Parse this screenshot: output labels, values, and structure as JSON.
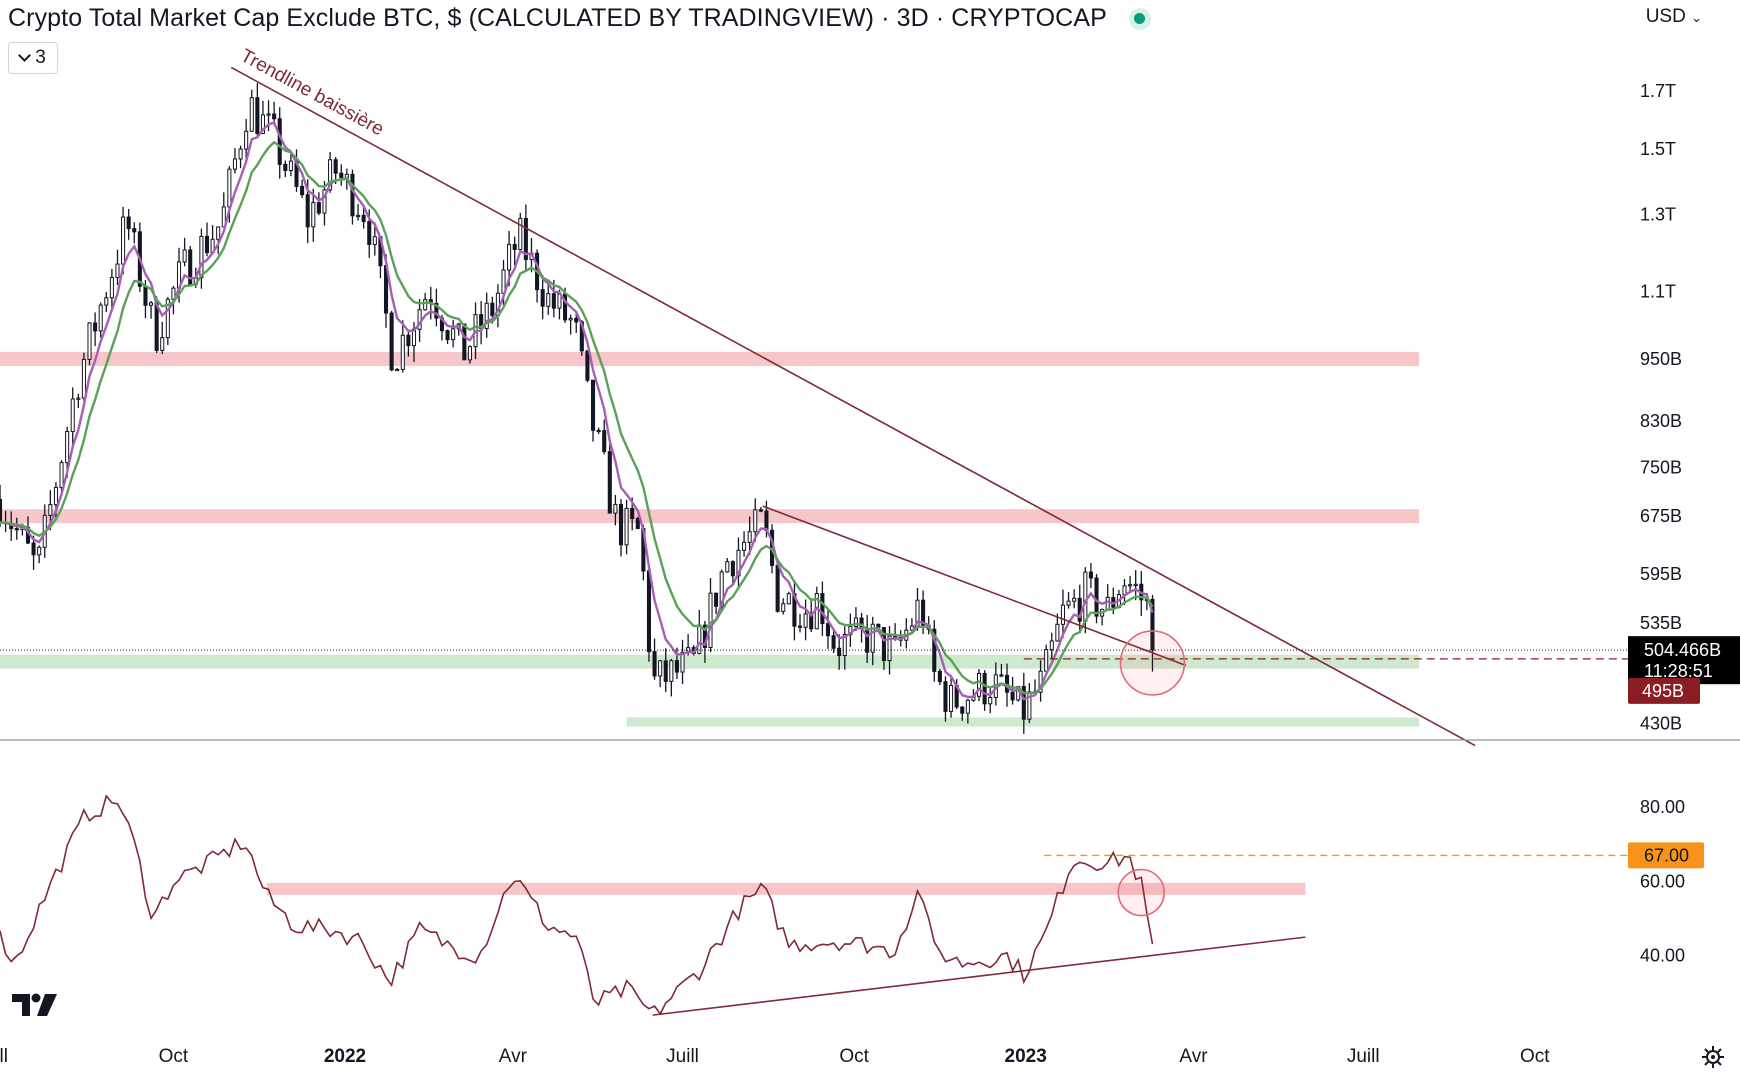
{
  "header": {
    "title": "Crypto Total Market Cap Exclude BTC, $ (CALCULATED BY TRADINGVIEW) · 3D · CRYPTOCAP",
    "currency": "USD",
    "indicator_count": "3"
  },
  "icons": {
    "live": "live-status-dot",
    "collapse": "chevron-down-icon",
    "logo": "tradingview-logo-icon",
    "settings": "gear-icon"
  },
  "colors": {
    "candle": "#131722",
    "ema_fast": "#a55fb5",
    "ema_slow": "#5aa15a",
    "trendline": "#7f2a35",
    "rsi": "#7f2a35",
    "resistance_zone": "#f6c6c9",
    "support_zone": "#cfe9cf",
    "price_label_bg": "#000000",
    "level_label_bg": "#8b1e22",
    "rsi_level_label_bg": "#f7931a"
  },
  "chart_data": [
    {
      "type": "candlestick",
      "title": "Crypto Total Market Cap Exclude BTC, $ (CALCULATED BY TRADINGVIEW) · 3D · CRYPTOCAP",
      "scale": "log",
      "ylim": [
        415,
        1900
      ],
      "y_tick_labels": [
        "1.7T",
        "1.5T",
        "1.3T",
        "1.1T",
        "950B",
        "830B",
        "750B",
        "675B",
        "595B",
        "535B",
        "430B"
      ],
      "y_tick_values": [
        1700,
        1500,
        1300,
        1100,
        950,
        830,
        750,
        675,
        595,
        535,
        430
      ],
      "x_tick_labels": [
        "ill",
        "Oct",
        "2022",
        "Avr",
        "Juill",
        "Oct",
        "2023",
        "Avr",
        "Juill",
        "Oct"
      ],
      "x_tick_dates": [
        "2021-07-01",
        "2021-10-01",
        "2022-01-01",
        "2022-04-01",
        "2022-07-01",
        "2022-10-01",
        "2023-01-01",
        "2023-04-01",
        "2023-07-01",
        "2023-10-01"
      ],
      "x_range": [
        "2021-06-30",
        "2023-11-20"
      ],
      "price_path": [
        [
          "2021-06-30",
          700
        ],
        [
          "2021-07-20",
          600
        ],
        [
          "2021-08-10",
          900
        ],
        [
          "2021-09-06",
          1280
        ],
        [
          "2021-09-21",
          1000
        ],
        [
          "2021-10-06",
          1150
        ],
        [
          "2021-10-27",
          1280
        ],
        [
          "2021-11-10",
          1660
        ],
        [
          "2021-11-24",
          1530
        ],
        [
          "2021-12-12",
          1290
        ],
        [
          "2021-12-27",
          1430
        ],
        [
          "2022-01-13",
          1300
        ],
        [
          "2022-01-27",
          950
        ],
        [
          "2022-02-15",
          1110
        ],
        [
          "2022-03-05",
          960
        ],
        [
          "2022-03-21",
          1060
        ],
        [
          "2022-04-04",
          1240
        ],
        [
          "2022-04-20",
          1080
        ],
        [
          "2022-05-04",
          1020
        ],
        [
          "2022-05-12",
          850
        ],
        [
          "2022-05-27",
          660
        ],
        [
          "2022-06-08",
          650
        ],
        [
          "2022-06-15",
          470
        ],
        [
          "2022-06-27",
          480
        ],
        [
          "2022-07-07",
          490
        ],
        [
          "2022-07-24",
          610
        ],
        [
          "2022-08-13",
          665
        ],
        [
          "2022-08-21",
          570
        ],
        [
          "2022-09-06",
          550
        ],
        [
          "2022-09-12",
          565
        ],
        [
          "2022-09-21",
          510
        ],
        [
          "2022-10-09",
          520
        ],
        [
          "2022-10-23",
          500
        ],
        [
          "2022-11-06",
          560
        ],
        [
          "2022-11-12",
          480
        ],
        [
          "2022-11-22",
          450
        ],
        [
          "2022-12-14",
          470
        ],
        [
          "2022-12-30",
          440
        ],
        [
          "2023-01-10",
          470
        ],
        [
          "2023-01-21",
          545
        ],
        [
          "2023-02-02",
          570
        ],
        [
          "2023-02-14",
          550
        ],
        [
          "2023-02-22",
          590
        ],
        [
          "2023-03-01",
          575
        ],
        [
          "2023-03-07",
          555
        ],
        [
          "2023-03-10",
          504
        ]
      ],
      "series": [
        {
          "name": "",
          "kind": "ema_fast",
          "color": "#a55fb5"
        },
        {
          "name": "",
          "kind": "ema_slow",
          "color": "#5aa15a"
        }
      ],
      "resistance_zones": [
        950,
        675
      ],
      "support_zones": [
        492,
        432
      ],
      "zone_end_date": "2023-07-31",
      "support_zone_2_start_date": "2022-06-01",
      "trendlines": [
        {
          "label": "Trendline baissière",
          "start": [
            "2021-11-01",
            1790
          ],
          "end": [
            "2023-08-30",
            410
          ]
        },
        {
          "label": "",
          "start": [
            "2022-08-13",
            690
          ],
          "end": [
            "2023-03-28",
            488
          ]
        }
      ],
      "highlight_circle": {
        "date": "2023-03-10",
        "value": 495
      },
      "last_price_label": "504.466B",
      "countdown": "11:28:51",
      "last_price_value": 504.466,
      "level_label": "495B",
      "level_value": 495,
      "annotations": [
        "Trendline baissière"
      ]
    },
    {
      "type": "line",
      "name": "",
      "ylim": [
        20,
        90
      ],
      "y_tick_labels": [
        "80.00",
        "60.00",
        "40.00"
      ],
      "y_tick_values": [
        80,
        60,
        40
      ],
      "path": [
        [
          "2021-06-30",
          45
        ],
        [
          "2021-07-08",
          38
        ],
        [
          "2021-07-25",
          57
        ],
        [
          "2021-08-15",
          78
        ],
        [
          "2021-09-01",
          82
        ],
        [
          "2021-09-10",
          70
        ],
        [
          "2021-09-20",
          50
        ],
        [
          "2021-10-01",
          60
        ],
        [
          "2021-10-20",
          65
        ],
        [
          "2021-11-08",
          71
        ],
        [
          "2021-11-20",
          56
        ],
        [
          "2021-12-05",
          48
        ],
        [
          "2021-12-25",
          47
        ],
        [
          "2022-01-10",
          44
        ],
        [
          "2022-01-25",
          33
        ],
        [
          "2022-02-10",
          47
        ],
        [
          "2022-03-01",
          42
        ],
        [
          "2022-03-14",
          40
        ],
        [
          "2022-04-01",
          62
        ],
        [
          "2022-04-20",
          48
        ],
        [
          "2022-05-05",
          45
        ],
        [
          "2022-05-15",
          27
        ],
        [
          "2022-06-01",
          31
        ],
        [
          "2022-06-15",
          24
        ],
        [
          "2022-07-10",
          36
        ],
        [
          "2022-08-01",
          53
        ],
        [
          "2022-08-13",
          58
        ],
        [
          "2022-08-27",
          43
        ],
        [
          "2022-09-21",
          44
        ],
        [
          "2022-10-08",
          43
        ],
        [
          "2022-10-22",
          41
        ],
        [
          "2022-11-06",
          59
        ],
        [
          "2022-11-12",
          42
        ],
        [
          "2022-11-27",
          38
        ],
        [
          "2022-12-22",
          40
        ],
        [
          "2022-12-31",
          35
        ],
        [
          "2023-01-11",
          45
        ],
        [
          "2023-01-26",
          66
        ],
        [
          "2023-02-15",
          65
        ],
        [
          "2023-02-25",
          67
        ],
        [
          "2023-03-04",
          59
        ],
        [
          "2023-03-10",
          42
        ]
      ],
      "resistance_zone": 58,
      "zone_range": [
        "2021-11-20",
        "2023-05-31"
      ],
      "level_line": 67,
      "level_label": "67.00",
      "level_line_start": "2023-01-11",
      "support_trendline": {
        "start": [
          "2022-06-15",
          24
        ],
        "end": [
          "2023-05-31",
          45
        ]
      },
      "highlight_circle": {
        "date": "2023-03-04",
        "value": 57
      }
    }
  ]
}
